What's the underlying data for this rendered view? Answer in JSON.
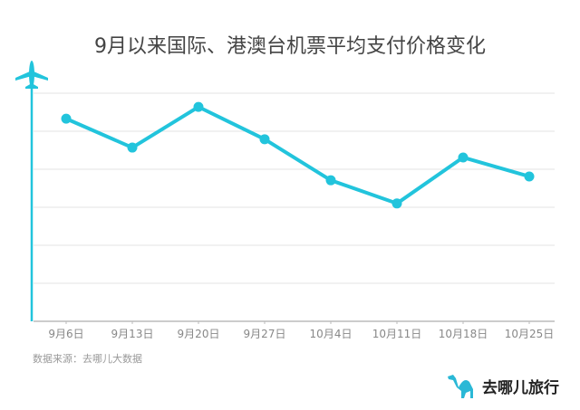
{
  "chart_data": {
    "type": "line",
    "title": "9月以来国际、港澳台机票平均支付价格变化",
    "categories": [
      "9月6日",
      "9月13日",
      "9月20日",
      "9月27日",
      "10月4日",
      "10月11日",
      "10月18日",
      "10月25日"
    ],
    "series": [
      {
        "values": [
          5.33,
          4.57,
          5.64,
          4.79,
          3.71,
          3.1,
          4.31,
          3.81
        ]
      }
    ],
    "ylim": [
      0,
      6
    ],
    "grid": true,
    "color": "#22c4dc",
    "y_axis_icon": "airplane-icon"
  },
  "source": "数据来源：去哪儿大数据",
  "logo": {
    "text": "去哪儿旅行",
    "icon": "camel-icon",
    "color": "#2ab8d6"
  }
}
